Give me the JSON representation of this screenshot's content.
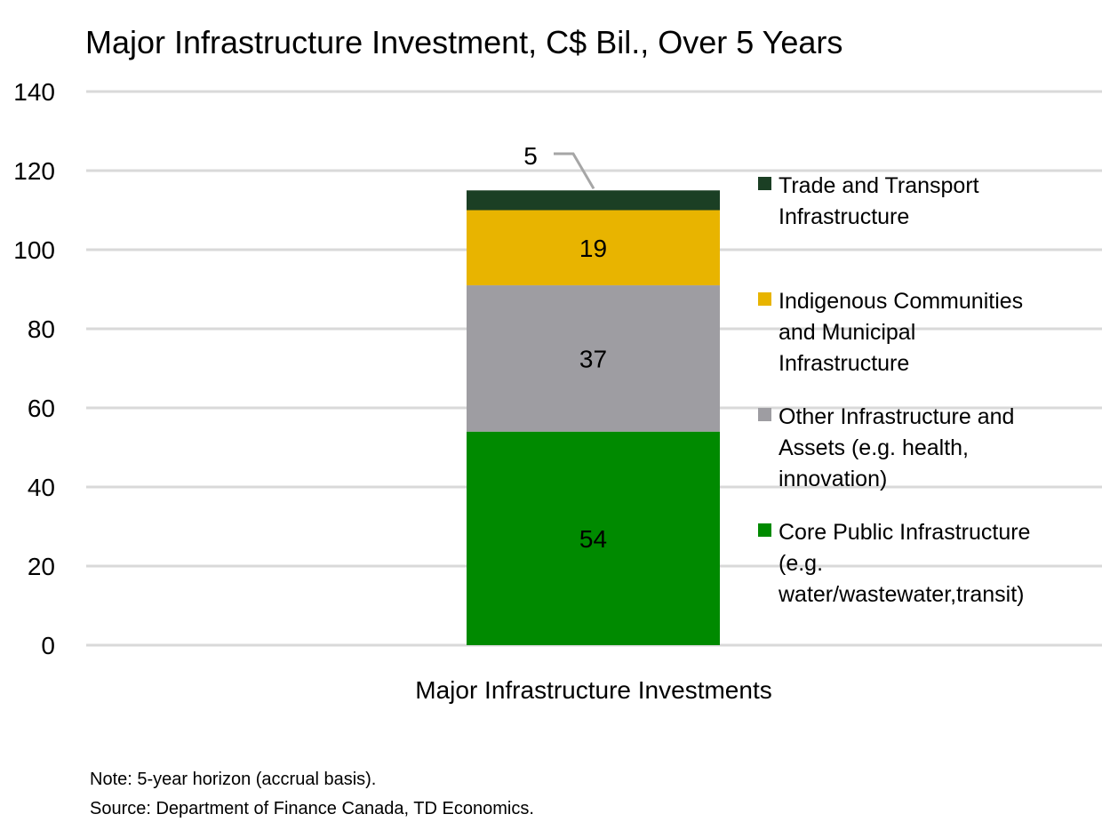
{
  "chart_data": {
    "type": "bar",
    "stacked": true,
    "title": "Major Infrastructure Investment, C$ Bil., Over 5 Years",
    "categories": [
      "Major Infrastructure Investments"
    ],
    "ylim": [
      0,
      140
    ],
    "yticks": [
      0,
      20,
      40,
      60,
      80,
      100,
      120,
      140
    ],
    "grid": true,
    "legend_placement": "right",
    "series": [
      {
        "name": "Core Public Infrastructure (e.g. water/wastewater,transit)",
        "legend_lines": [
          "Core Public Infrastructure",
          "(e.g.",
          "water/wastewater,transit)"
        ],
        "values": [
          54
        ],
        "label": "54",
        "color": "#008A00"
      },
      {
        "name": "Other Infrastructure and Assets (e.g. health, innovation)",
        "legend_lines": [
          "Other Infrastructure and",
          "Assets (e.g. health,",
          "innovation)"
        ],
        "values": [
          37
        ],
        "label": "37",
        "color": "#9E9DA2"
      },
      {
        "name": "Indigenous Communities and Municipal Infrastructure",
        "legend_lines": [
          "Indigenous Communities",
          "and Municipal",
          "Infrastructure"
        ],
        "values": [
          19
        ],
        "label": "19",
        "color": "#E8B400"
      },
      {
        "name": "Trade and Transport Infrastructure",
        "legend_lines": [
          "Trade and Transport",
          "Infrastructure"
        ],
        "values": [
          5
        ],
        "label": "5",
        "color": "#1B3F24"
      }
    ]
  },
  "notes": {
    "note": "Note: 5-year horizon (accrual basis).",
    "source": "Source: Department of Finance Canada, TD Economics."
  }
}
